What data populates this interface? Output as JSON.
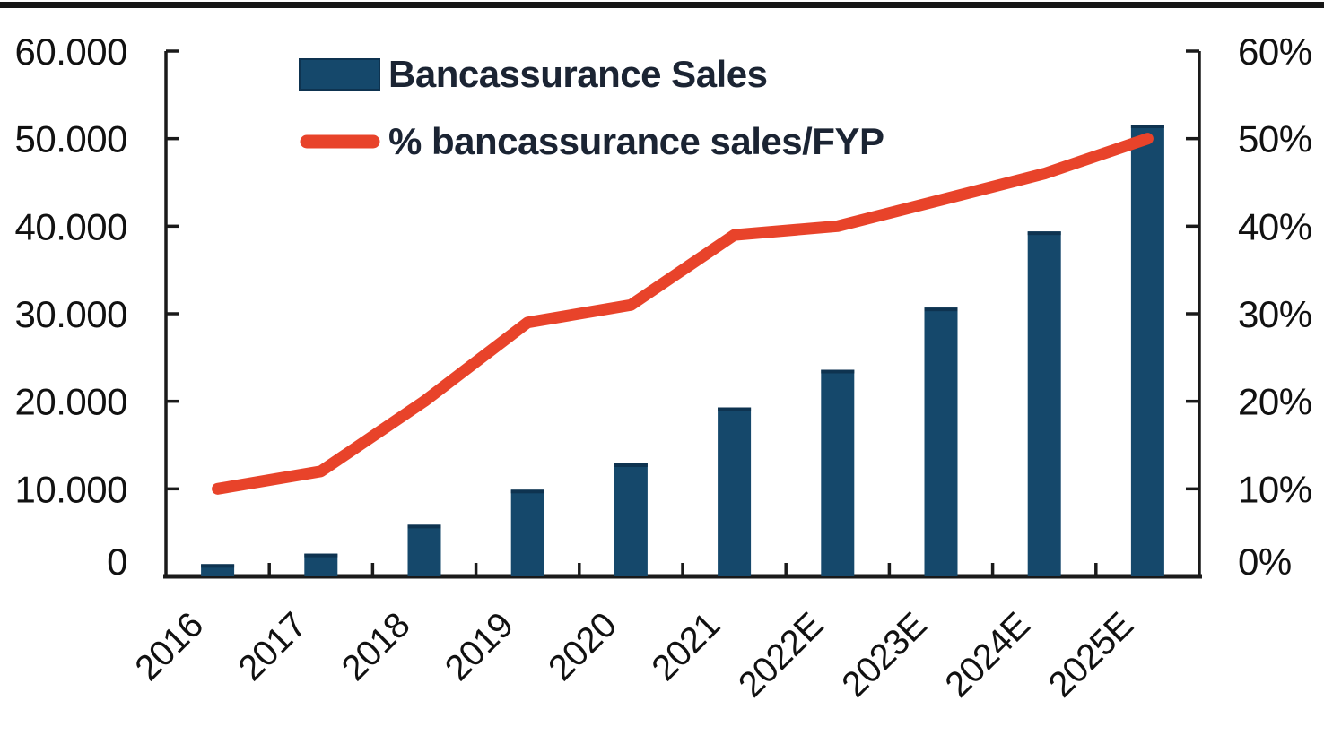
{
  "page": {
    "background": "#ffffff",
    "top_rule_color": "#161616"
  },
  "legend": {
    "bar_label": "Bancassurance Sales",
    "line_label": "% bancassurance sales/FYP"
  },
  "colors": {
    "bar": "#15486b",
    "bar_edge": "#0e3350",
    "line": "#e8432a",
    "axis_line": "#1a1a1a",
    "tick_text": "#111111",
    "legend_text": "#1b2433"
  },
  "chart_data": {
    "type": "bar",
    "subtype": "combo-bar-line-dual-axis",
    "title": "",
    "categories": [
      "2016",
      "2017",
      "2018",
      "2019",
      "2020",
      "2021",
      "2022E",
      "2023E",
      "2024E",
      "2025E"
    ],
    "series": [
      {
        "name": "Bancassurance Sales",
        "chart_type": "bar",
        "axis": "left",
        "color": "#15486b",
        "values": [
          1400,
          2600,
          5900,
          9900,
          12900,
          19300,
          23600,
          30700,
          39400,
          51600
        ]
      },
      {
        "name": "% bancassurance sales/FYP",
        "chart_type": "line",
        "axis": "right",
        "color": "#e8432a",
        "values": [
          10,
          12,
          20,
          29,
          31,
          39,
          40,
          43,
          46,
          50
        ]
      }
    ],
    "left_axis": {
      "min": 0,
      "max": 60000,
      "step": 10000,
      "tick_labels": [
        "0",
        "10.000",
        "20.000",
        "30.000",
        "40.000",
        "50.000",
        "60.000"
      ]
    },
    "right_axis": {
      "min": 0,
      "max": 60,
      "step": 10,
      "tick_labels": [
        "0%",
        "10%",
        "20%",
        "30%",
        "40%",
        "50%",
        "60%"
      ]
    },
    "grid": false,
    "legend_position": "top-left-inside",
    "x_label_rotation_deg": -45
  }
}
